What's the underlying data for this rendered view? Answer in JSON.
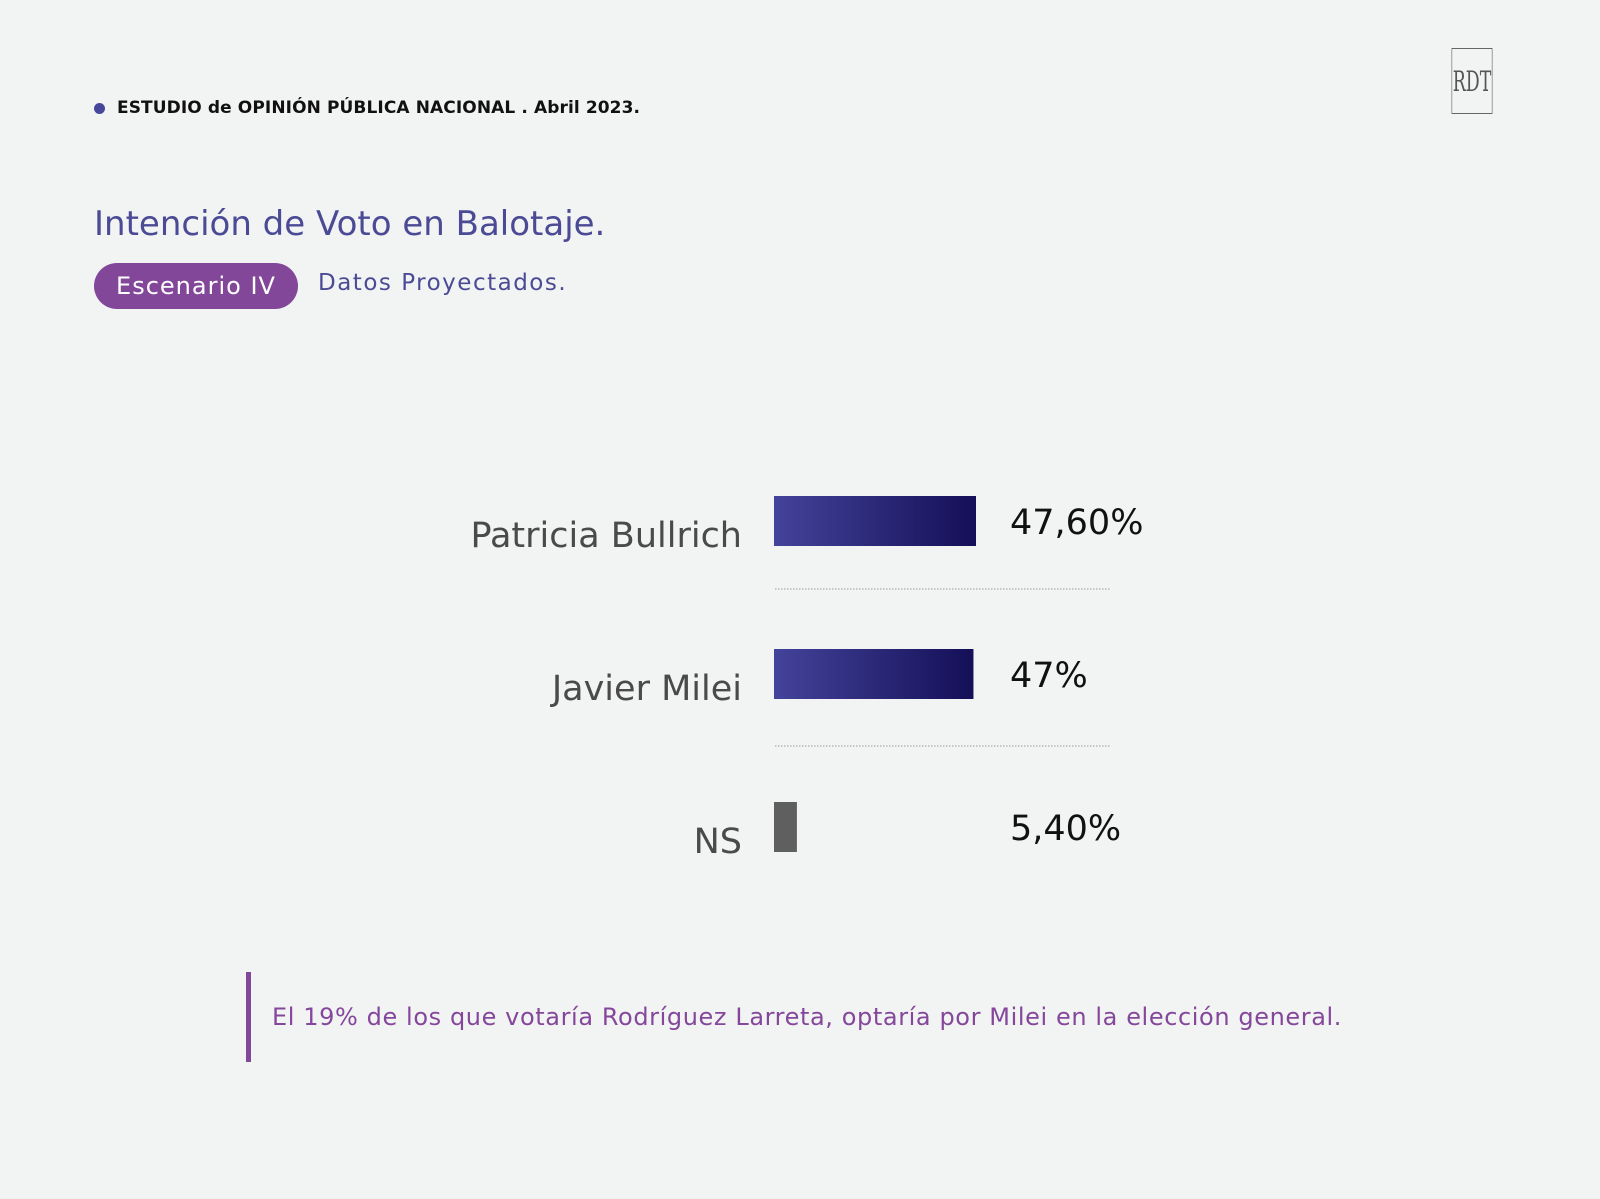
{
  "header": {
    "study": "ESTUDIO de OPINIÓN PÚBLICA NACIONAL . Abril 2023.",
    "logo_text": "RDT"
  },
  "title": "Intención de Voto en Balotaje.",
  "scenario_label": "Escenario IV",
  "subtitle": "Datos Proyectados.",
  "colors": {
    "bar_gradient_start": "#43439a",
    "bar_gradient_end": "#140f57",
    "ns_bar": "#5f5f5f",
    "accent_purple": "#83479a"
  },
  "chart_data": {
    "type": "bar",
    "orientation": "horizontal",
    "categories": [
      "Patricia Bullrich",
      "Javier Milei",
      "NS"
    ],
    "values": [
      47.6,
      47.0,
      5.4
    ],
    "value_labels": [
      "47,60%",
      "47%",
      "5,40%"
    ],
    "unit": "%",
    "grid": false,
    "legend": "none"
  },
  "note": "El 19% de los que votaría Rodríguez Larreta, optaría por Milei en la elección general."
}
